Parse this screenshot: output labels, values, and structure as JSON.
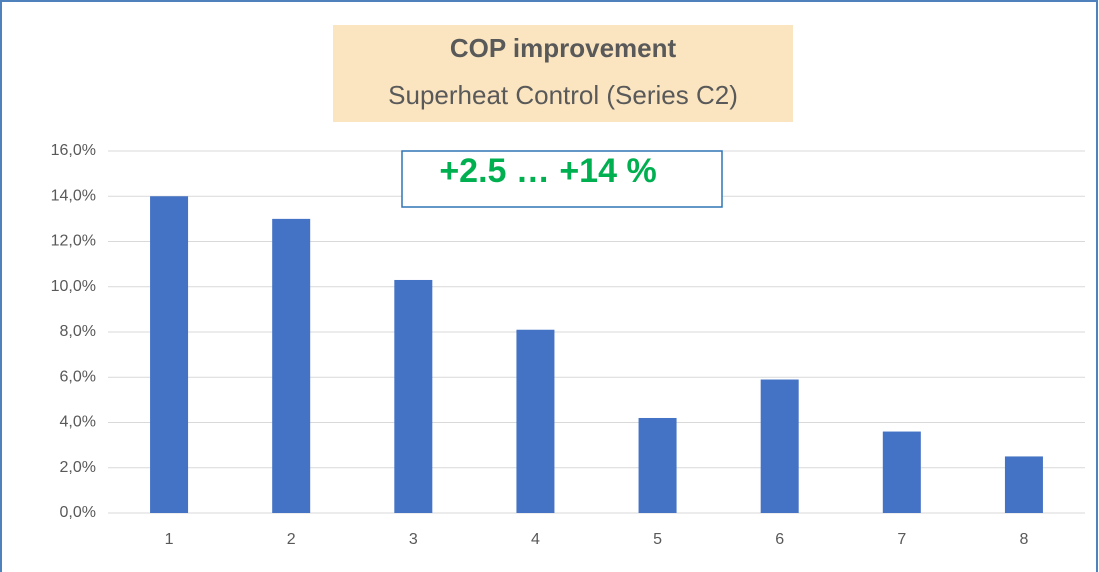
{
  "chart_data": {
    "type": "bar",
    "title": "COP improvement",
    "subtitle": "Superheat Control (Series C2)",
    "annotation": "+2.5 … +14 %",
    "categories": [
      "1",
      "2",
      "3",
      "4",
      "5",
      "6",
      "7",
      "8"
    ],
    "values": [
      14.0,
      13.0,
      10.3,
      8.1,
      4.2,
      5.9,
      3.6,
      2.5
    ],
    "color": "#4472c4",
    "ylim": [
      0,
      16
    ],
    "yticks": [
      {
        "value": 0,
        "label": "0,0%"
      },
      {
        "value": 2,
        "label": "2,0%"
      },
      {
        "value": 4,
        "label": "4,0%"
      },
      {
        "value": 6,
        "label": "6,0%"
      },
      {
        "value": 8,
        "label": "8,0%"
      },
      {
        "value": 10,
        "label": "10,0%"
      },
      {
        "value": 12,
        "label": "12,0%"
      },
      {
        "value": 14,
        "label": "14,0%"
      },
      {
        "value": 16,
        "label": "16,0%"
      }
    ],
    "grid": true
  }
}
